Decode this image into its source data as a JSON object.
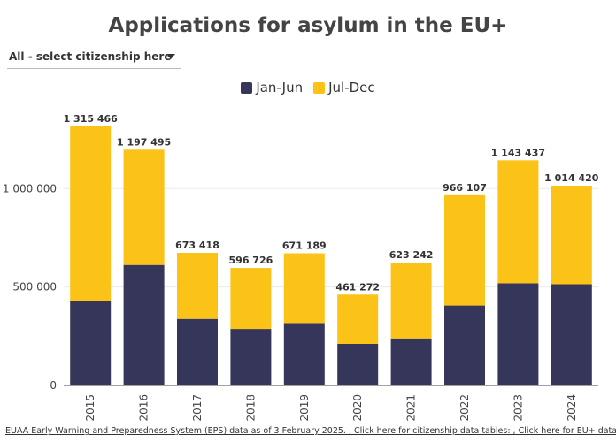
{
  "chart_data": {
    "type": "bar",
    "stacked": true,
    "title": "Applications for asylum in the EU+",
    "categories": [
      "2015",
      "2016",
      "2017",
      "2018",
      "2019",
      "2020",
      "2021",
      "2022",
      "2023",
      "2024"
    ],
    "series": [
      {
        "name": "Jan-Jun",
        "color": "#36355a",
        "values": [
          431000,
          612000,
          338000,
          287000,
          317000,
          211000,
          239000,
          406000,
          519000,
          514000
        ]
      },
      {
        "name": "Jul-Dec",
        "color": "#fbc317",
        "values": [
          884466,
          585495,
          335418,
          309726,
          354189,
          250272,
          384242,
          560107,
          624437,
          500420
        ]
      }
    ],
    "total_labels": [
      "1 315 466",
      "1 197 495",
      "673 418",
      "596 726",
      "671 189",
      "461 272",
      "623 242",
      "966 107",
      "1 143 437",
      "1 014 420"
    ],
    "y_ticks": [
      0,
      500000,
      1000000
    ],
    "y_tick_labels": [
      "0",
      "500 000",
      "1 000 000"
    ],
    "ylim": [
      0,
      1315466
    ],
    "legend_position": "top-center",
    "grid": true
  },
  "controls": {
    "citizenship_select": "All - select citizenship here"
  },
  "source": {
    "part1": "EUAA Early Warning and Preparedness System (EPS) data as of 3 February 2025. ",
    "part2": ", Click here for citizenship data tables: ",
    "part3": ", Click here for EU+ data tables:"
  }
}
